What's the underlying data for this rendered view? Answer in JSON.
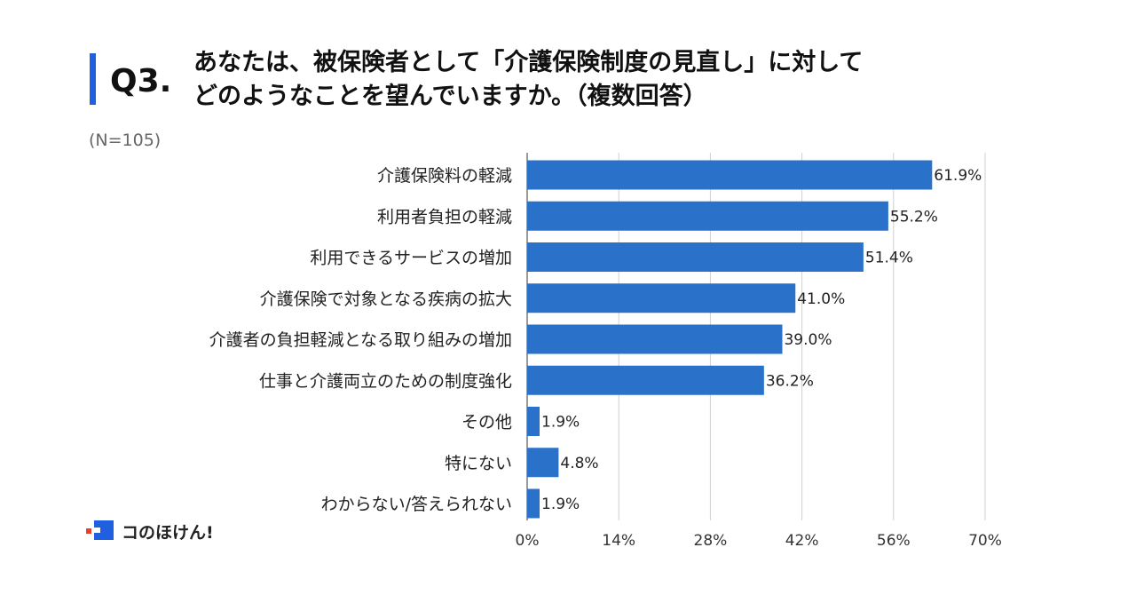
{
  "header": {
    "question": "Q3.",
    "title_line1": "あなたは、被保険者として「介護保険制度の見直し」に対して",
    "title_line2": "どのようなことを望んでいますか。（複数回答）",
    "sample_size": "(N=105)"
  },
  "brand": {
    "name": "コのほけん!"
  },
  "colors": {
    "bar": "#2a72c9",
    "accent": "#1f5fe0",
    "brand_red": "#e8402f"
  },
  "chart_data": {
    "type": "bar",
    "orientation": "horizontal",
    "title": "あなたは、被保険者として「介護保険制度の見直し」に対して どのようなことを望んでいますか。（複数回答）",
    "categories": [
      "介護保険料の軽減",
      "利用者負担の軽減",
      "利用できるサービスの増加",
      "介護保険で対象となる疾病の拡大",
      "介護者の負担軽減となる取り組みの増加",
      "仕事と介護両立のための制度強化",
      "その他",
      "特にない",
      "わからない/答えられない"
    ],
    "values": [
      61.9,
      55.2,
      51.4,
      41.0,
      39.0,
      36.2,
      1.9,
      4.8,
      1.9
    ],
    "value_labels": [
      "61.9%",
      "55.2%",
      "51.4%",
      "41.0%",
      "39.0%",
      "36.2%",
      "1.9%",
      "4.8%",
      "1.9%"
    ],
    "xlim": [
      0,
      70
    ],
    "ticks": [
      0,
      14,
      28,
      42,
      56,
      70
    ],
    "tick_labels": [
      "0%",
      "14%",
      "28%",
      "42%",
      "56%",
      "70%"
    ],
    "grid": true,
    "xlabel": "",
    "ylabel": ""
  }
}
